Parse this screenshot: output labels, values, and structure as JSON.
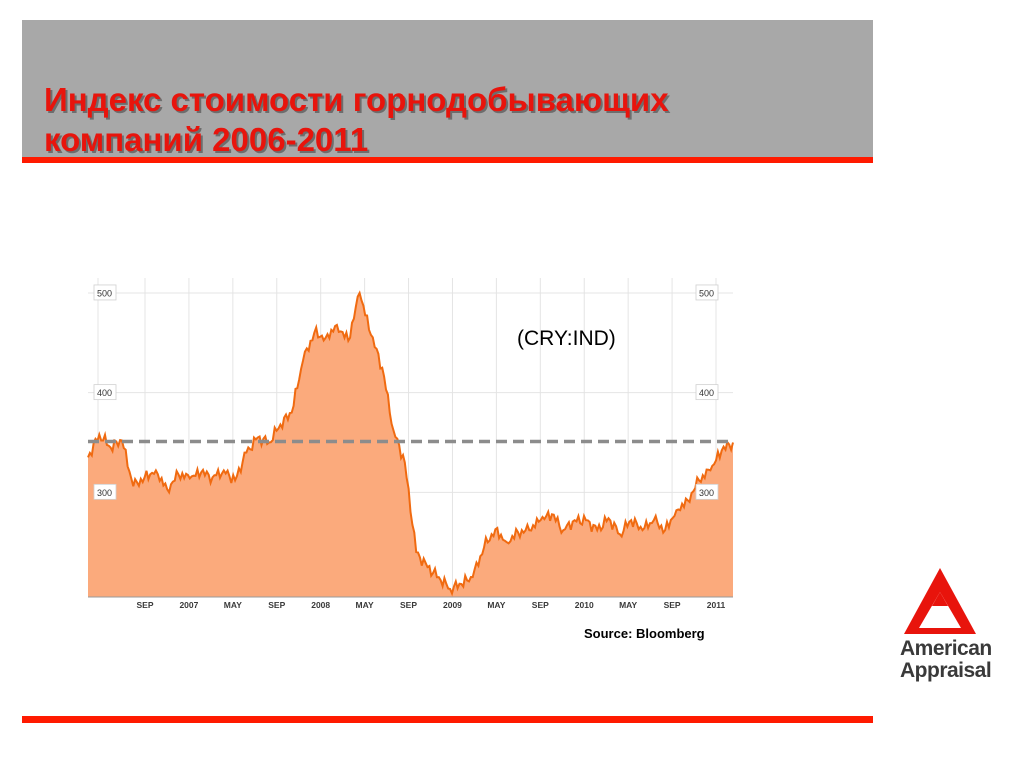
{
  "slide": {
    "title_line1": "Индекс стоимости горнодобывающих",
    "title_line2": "компаний 2006-2011",
    "ticker": "(CRY:IND)",
    "source": "Source: Bloomberg",
    "accent_color": "#ff1a00",
    "title_color": "#e8140c",
    "band_color": "#a8a8a8"
  },
  "logo": {
    "line1": "American",
    "line2": "Appraisal",
    "icon": "red-triangle-logo-icon"
  },
  "chart_data": {
    "type": "area",
    "x_tick_labels": [
      "SEP",
      "2007",
      "MAY",
      "SEP",
      "2008",
      "MAY",
      "SEP",
      "2009",
      "MAY",
      "SEP",
      "2010",
      "MAY",
      "SEP",
      "2011"
    ],
    "y_ticks": [
      300,
      400,
      500
    ],
    "y_tick_labels": [
      "300",
      "400",
      "500"
    ],
    "ylim": [
      195,
      515
    ],
    "grid": true,
    "reference_line": 351,
    "colors": {
      "fill": "#fbaa7c",
      "line": "#f06a10",
      "reference": "#8c8c8c"
    },
    "series": [
      {
        "x": [
          "2006-05",
          "2006-06",
          "2006-07",
          "2006-08",
          "2006-09",
          "2006-10",
          "2006-11",
          "2006-12",
          "2007-01",
          "2007-02",
          "2007-03",
          "2007-04",
          "2007-05",
          "2007-06",
          "2007-07",
          "2007-08",
          "2007-09",
          "2007-10",
          "2007-11",
          "2007-12",
          "2008-01",
          "2008-02",
          "2008-03",
          "2008-04",
          "2008-05",
          "2008-06",
          "2008-07",
          "2008-08",
          "2008-09",
          "2008-10",
          "2008-11",
          "2008-12",
          "2009-01",
          "2009-02",
          "2009-03",
          "2009-04",
          "2009-05",
          "2009-06",
          "2009-07",
          "2009-08",
          "2009-09",
          "2009-10",
          "2009-11",
          "2009-12",
          "2010-01",
          "2010-02",
          "2010-03",
          "2010-04",
          "2010-05",
          "2010-06",
          "2010-07",
          "2010-08",
          "2010-09",
          "2010-10",
          "2010-11",
          "2010-12",
          "2011-01",
          "2011-02"
        ],
        "values": [
          335,
          358,
          345,
          352,
          306,
          315,
          322,
          303,
          318,
          314,
          320,
          315,
          322,
          312,
          340,
          355,
          350,
          368,
          380,
          432,
          460,
          455,
          468,
          452,
          500,
          458,
          425,
          362,
          330,
          240,
          225,
          215,
          203,
          208,
          215,
          245,
          263,
          250,
          260,
          262,
          272,
          278,
          262,
          272,
          272,
          262,
          274,
          258,
          272,
          262,
          272,
          262,
          282,
          292,
          312,
          322,
          342,
          350
        ]
      }
    ]
  }
}
